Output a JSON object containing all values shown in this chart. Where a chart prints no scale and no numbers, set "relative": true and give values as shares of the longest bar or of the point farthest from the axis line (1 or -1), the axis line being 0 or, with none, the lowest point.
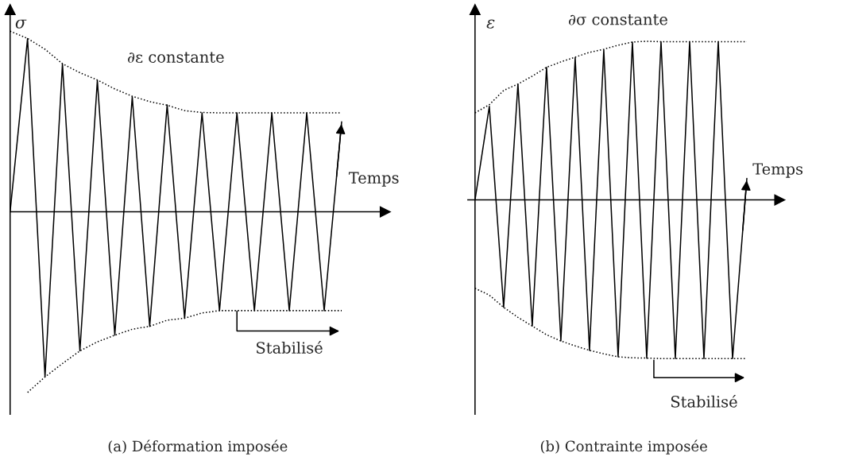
{
  "chart_data": [
    {
      "type": "line",
      "title": "(a) Déformation imposée",
      "xlabel": "Temps",
      "ylabel": "σ",
      "relative": true,
      "annotations": [
        "∂ε constante",
        "Stabilisé"
      ],
      "categories": [
        null,
        null,
        null,
        null,
        null,
        null,
        null,
        null,
        null,
        null,
        null,
        null,
        null,
        null,
        null,
        null,
        null,
        null,
        null,
        null
      ],
      "series": [
        {
          "color": "#000000",
          "line_style": "solid",
          "values": [
            0,
            0.959,
            -0.914,
            0.819,
            -0.77,
            0.728,
            -0.683,
            0.637,
            -0.634,
            0.592,
            -0.589,
            0.548,
            -0.547,
            0.548,
            -0.547,
            0.548,
            -0.547,
            0.548,
            -0.547,
            0.498
          ]
        },
        {
          "color": "#000000",
          "line_style": "dotted",
          "values": [
            1.0,
            0.96,
            0.9,
            0.82,
            0.77,
            0.73,
            0.68,
            0.64,
            0.61,
            0.59,
            0.56,
            0.55,
            0.548,
            0.548,
            0.548,
            0.548,
            0.548,
            0.548,
            0.548,
            0.548
          ]
        },
        {
          "color": "#000000",
          "line_style": "dotted",
          "values": [
            null,
            -1.0,
            -0.914,
            -0.84,
            -0.77,
            -0.72,
            -0.683,
            -0.65,
            -0.634,
            -0.6,
            -0.589,
            -0.56,
            -0.547,
            -0.547,
            -0.547,
            -0.547,
            -0.547,
            -0.547,
            -0.547,
            -0.547
          ]
        }
      ]
    },
    {
      "type": "line",
      "title": "(b) Contrainte imposée",
      "xlabel": "Temps",
      "ylabel": "ε",
      "relative": true,
      "annotations": [
        "∂σ constante",
        "Stabilisé"
      ],
      "categories": [
        null,
        null,
        null,
        null,
        null,
        null,
        null,
        null,
        null,
        null,
        null,
        null,
        null,
        null,
        null,
        null,
        null,
        null,
        null,
        null
      ],
      "series": [
        {
          "color": "#000000",
          "line_style": "solid",
          "values": [
            0,
            0.59,
            -0.677,
            0.73,
            -0.795,
            0.836,
            -0.889,
            0.897,
            -0.948,
            0.946,
            -0.989,
            0.995,
            -0.997,
            0.997,
            -1.0,
            0.997,
            -1.0,
            0.997,
            -1.0,
            0.136
          ]
        },
        {
          "color": "#000000",
          "line_style": "dotted",
          "values": [
            0.549,
            0.6,
            0.69,
            0.73,
            0.78,
            0.836,
            0.87,
            0.9,
            0.93,
            0.95,
            0.975,
            0.995,
            1.0,
            0.997,
            0.997,
            0.997,
            0.997,
            0.997,
            0.997,
            0.997
          ]
        },
        {
          "color": "#000000",
          "line_style": "dotted",
          "values": [
            -0.557,
            -0.6,
            -0.677,
            -0.74,
            -0.795,
            -0.85,
            -0.889,
            -0.92,
            -0.948,
            -0.97,
            -0.989,
            -0.995,
            -0.997,
            -1.0,
            -1.0,
            -1.0,
            -1.0,
            -1.0,
            -1.0,
            -1.0
          ]
        }
      ]
    }
  ]
}
